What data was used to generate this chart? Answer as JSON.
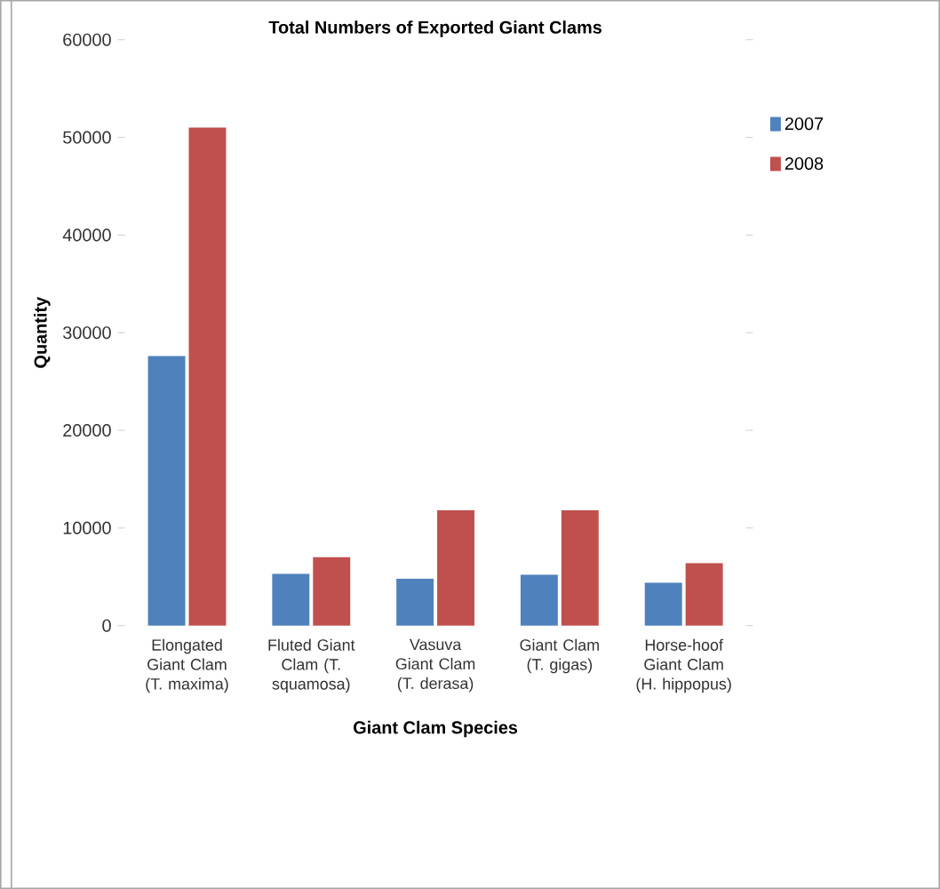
{
  "chart_data": {
    "type": "bar",
    "title": "Total Numbers of Exported Giant Clams",
    "xlabel": "Giant Clam Species",
    "ylabel": "Quantity",
    "categories": [
      "Elongated Giant Clam (T. maxima)",
      "Fluted Giant Clam (T. squamosa)",
      "Vasuva Giant Clam (T. derasa)",
      "Giant Clam (T. gigas)",
      "Horse-hoof Giant Clam (H. hippopus)"
    ],
    "series": [
      {
        "name": "2007",
        "color": "#4f81bd",
        "values": [
          27600,
          5300,
          4800,
          5200,
          4400
        ]
      },
      {
        "name": "2008",
        "color": "#c0504d",
        "values": [
          51000,
          7000,
          11800,
          11800,
          6400
        ]
      }
    ],
    "ylim": [
      0,
      60000
    ],
    "yticks": [
      0,
      10000,
      20000,
      30000,
      40000,
      50000,
      60000
    ],
    "grid": false,
    "legend": "top right"
  }
}
